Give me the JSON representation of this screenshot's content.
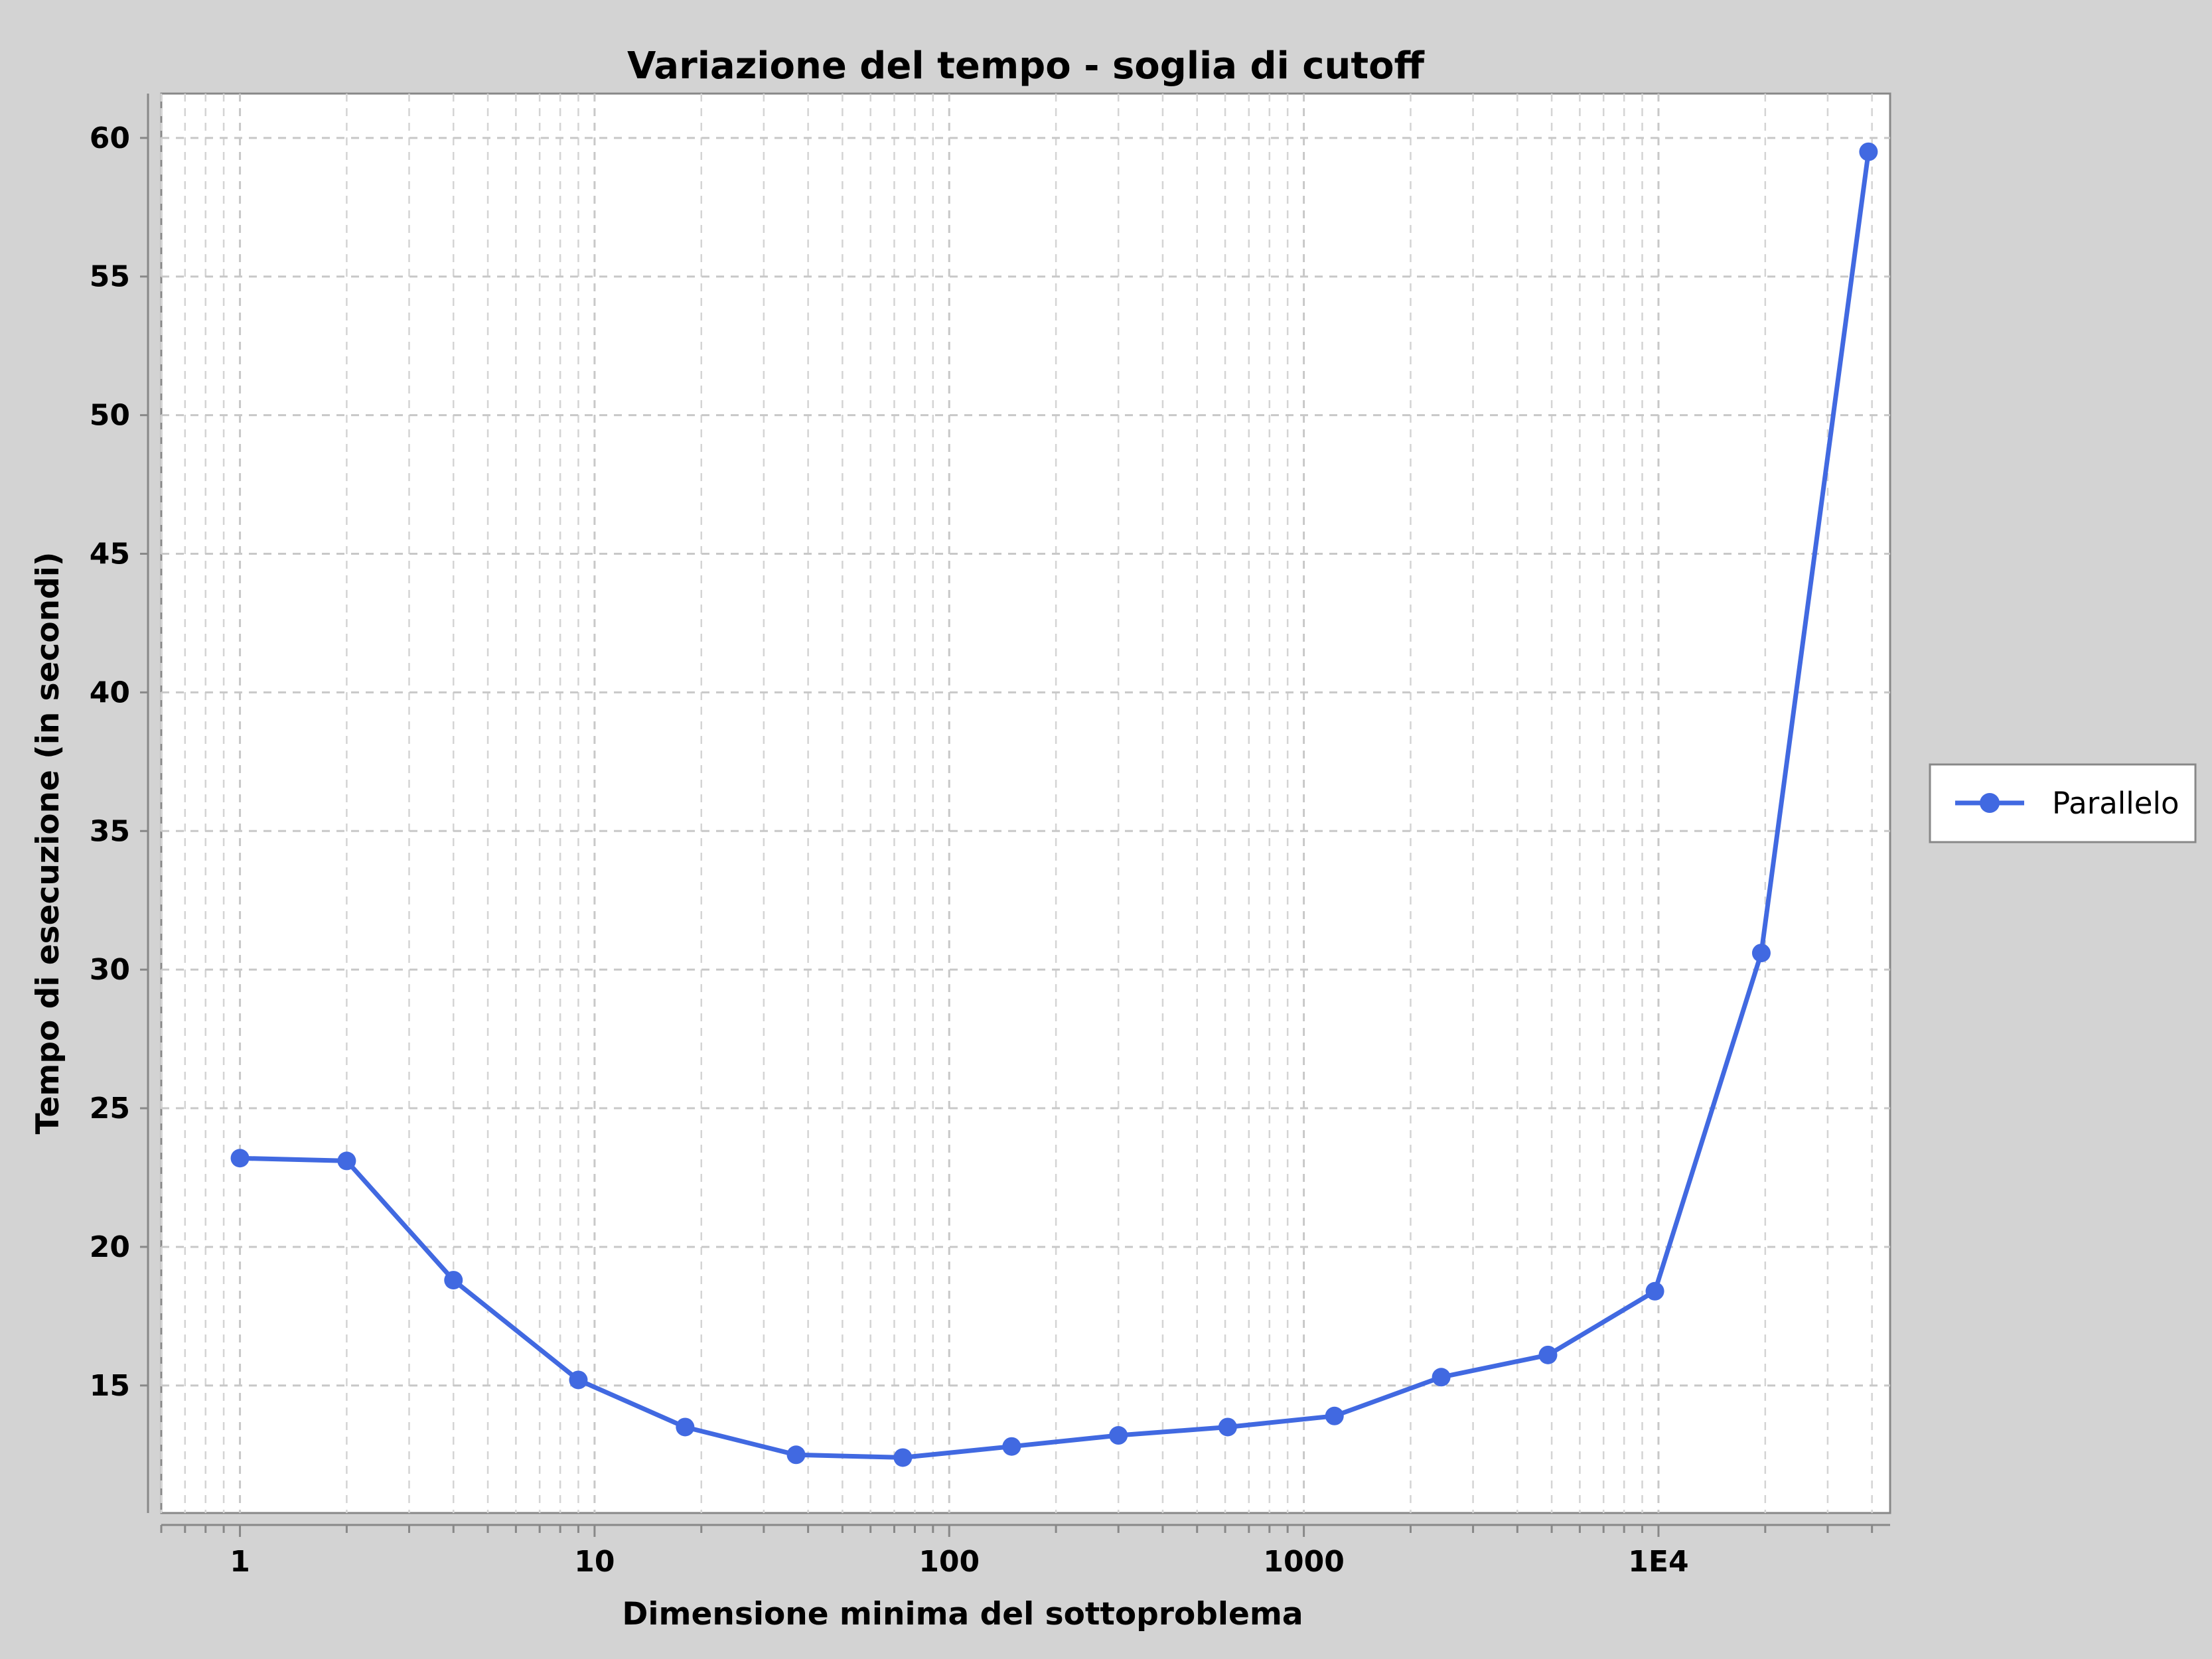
{
  "chart_data": {
    "type": "line",
    "title": "Variazione del tempo - soglia di cutoff",
    "xlabel": "Dimensione minima del sottoproblema",
    "ylabel": "Tempo di esecuzione (in secondi)",
    "x_scale": "log",
    "x_ticks": [
      {
        "value": 1,
        "label": "1"
      },
      {
        "value": 10,
        "label": "10"
      },
      {
        "value": 100,
        "label": "100"
      },
      {
        "value": 1000,
        "label": "1000"
      },
      {
        "value": 10000,
        "label": "1E4"
      }
    ],
    "y_ticks": [
      {
        "value": 15,
        "label": "15"
      },
      {
        "value": 20,
        "label": "20"
      },
      {
        "value": 25,
        "label": "25"
      },
      {
        "value": 30,
        "label": "30"
      },
      {
        "value": 35,
        "label": "35"
      },
      {
        "value": 40,
        "label": "40"
      },
      {
        "value": 45,
        "label": "45"
      },
      {
        "value": 50,
        "label": "50"
      },
      {
        "value": 55,
        "label": "55"
      },
      {
        "value": 60,
        "label": "60"
      }
    ],
    "xlim": [
      0.6,
      45000
    ],
    "ylim": [
      10.4,
      61.6
    ],
    "grid": true,
    "legend_position": "right",
    "series": [
      {
        "name": "Parallelo",
        "color": "#4169e1",
        "x": [
          1,
          2,
          4,
          9,
          18,
          37,
          74,
          150,
          300,
          610,
          1220,
          2440,
          4880,
          9770,
          19500,
          39100
        ],
        "y": [
          23.2,
          23.1,
          18.8,
          15.2,
          13.5,
          12.5,
          12.4,
          12.8,
          13.2,
          13.5,
          13.9,
          15.3,
          16.1,
          18.4,
          30.6,
          59.5
        ]
      }
    ]
  }
}
